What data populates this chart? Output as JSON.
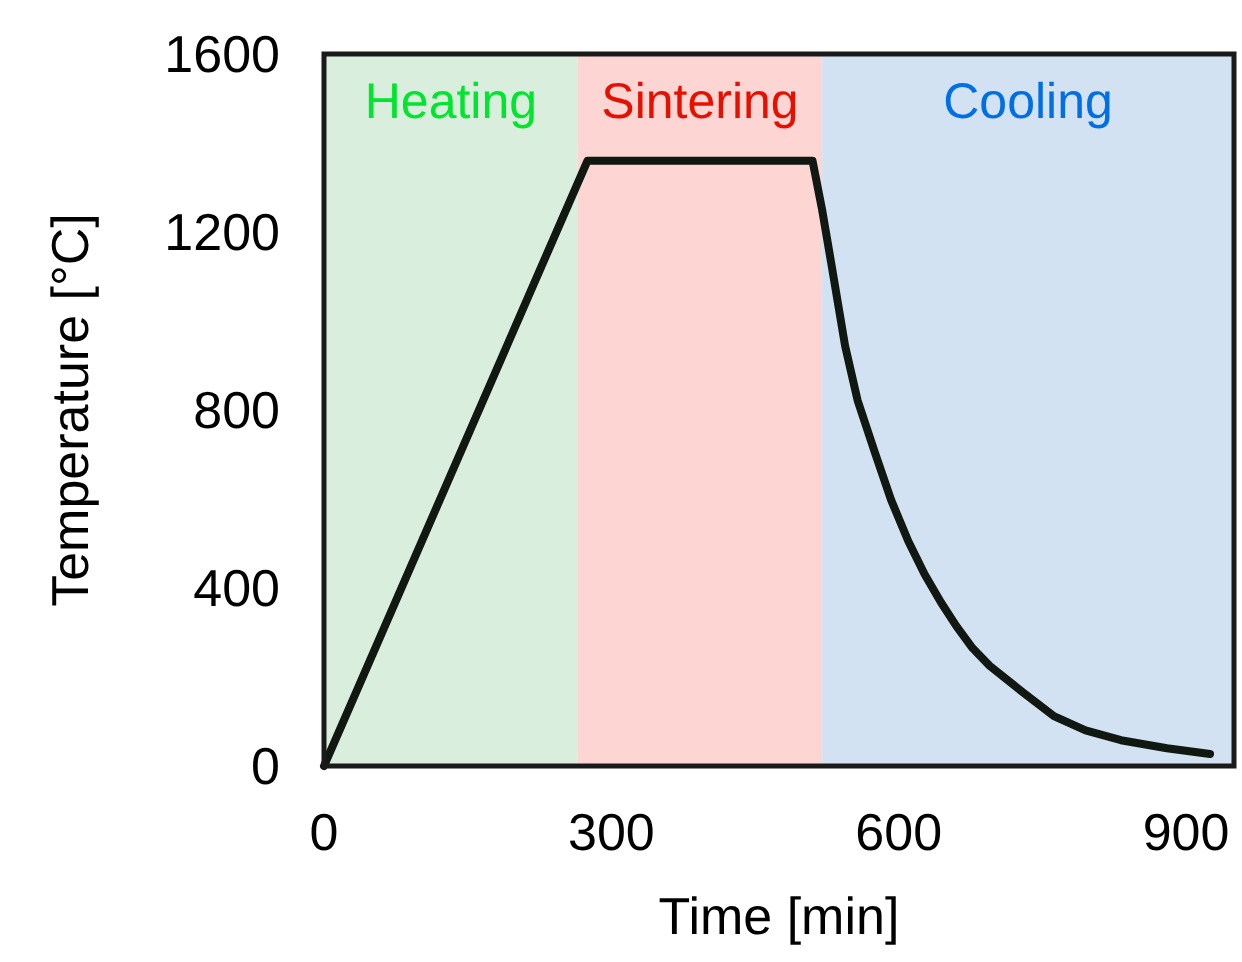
{
  "chart_data": {
    "type": "line",
    "xlabel": "Time [min]",
    "ylabel": "Temperature [°C]",
    "xlim": [
      0,
      950
    ],
    "ylim": [
      0,
      1600
    ],
    "xticks": [
      0,
      300,
      600,
      900
    ],
    "yticks": [
      0,
      400,
      800,
      1200,
      1600
    ],
    "grid": false,
    "marker": "none",
    "line_style": "solid",
    "x": [
      0,
      275,
      510,
      520,
      530,
      544,
      557,
      575,
      592,
      610,
      627,
      644,
      660,
      677,
      695,
      730,
      762,
      795,
      832,
      880,
      925
    ],
    "series": [
      {
        "color": "#111811",
        "values": [
          0,
          1360,
          1360,
          1250,
          1124,
          944,
          822,
          705,
          598,
          505,
          431,
          368,
          315,
          265,
          225,
          165,
          112,
          80,
          58,
          40,
          27
        ]
      }
    ],
    "bands": [
      {
        "axis": "x",
        "from": 0,
        "to": 265,
        "label": "Heating",
        "color": "#d9eedd"
      },
      {
        "axis": "x",
        "from": 265,
        "to": 520,
        "label": "Sintering",
        "color": "#fdd5d2"
      },
      {
        "axis": "x",
        "from": 520,
        "to": 950,
        "label": "Cooling",
        "color": "#d3e2f2"
      }
    ]
  }
}
